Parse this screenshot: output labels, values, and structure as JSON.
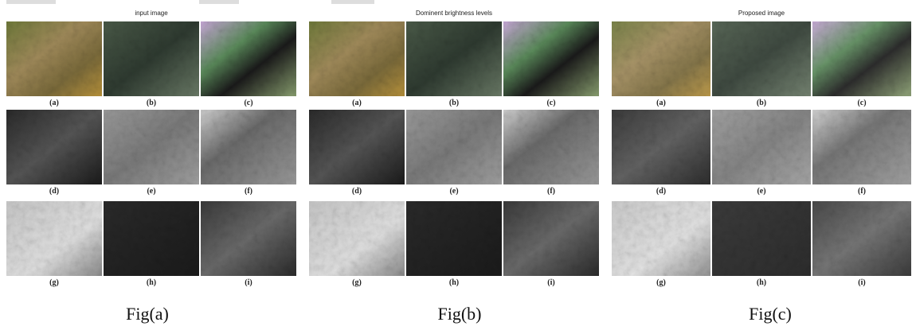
{
  "panels": [
    {
      "title": "input image",
      "labels": [
        "(a)",
        "(b)",
        "(c)",
        "(d)",
        "(e)",
        "(f)",
        "(g)",
        "(h)",
        "(i)"
      ],
      "caption": "Fig(a)"
    },
    {
      "title": "Dominent brightness levels",
      "labels": [
        "(a)",
        "(b)",
        "(c)",
        "(d)",
        "(e)",
        "(f)",
        "(g)",
        "(h)",
        "(i)"
      ],
      "caption": "Fig(b)"
    },
    {
      "title": "Proposed image",
      "labels": [
        "(a)",
        "(b)",
        "(c)",
        "(d)",
        "(e)",
        "(f)",
        "(g)",
        "(h)",
        "(i)"
      ],
      "caption": "Fig(c)"
    }
  ]
}
